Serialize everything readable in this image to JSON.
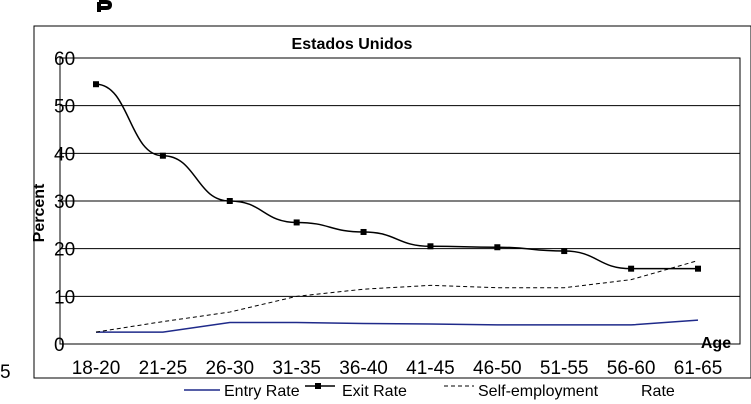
{
  "chart_data": {
    "type": "line",
    "title": "Estados Unidos",
    "xlabel": "Age",
    "ylabel": "Percent",
    "categories": [
      "18-20",
      "21-25",
      "26-30",
      "31-35",
      "36-40",
      "41-45",
      "46-50",
      "51-55",
      "56-60",
      "61-65"
    ],
    "ylim": [
      0,
      60
    ],
    "yticks": [
      "0",
      "10",
      "20",
      "30",
      "40",
      "50",
      "60"
    ],
    "grid": true,
    "legend_position": "bottom",
    "series": [
      {
        "name": "Entry Rate",
        "color": "#1f2a8a",
        "style": "solid",
        "values": [
          2.5,
          2.5,
          4.5,
          4.5,
          4.3,
          4.2,
          4.0,
          4.0,
          4.0,
          5.0
        ]
      },
      {
        "name": "Exit Rate",
        "color": "#000000",
        "style": "solid-marker",
        "values": [
          54.5,
          39.5,
          30.0,
          25.5,
          23.5,
          20.5,
          20.3,
          19.5,
          15.8,
          15.8
        ]
      },
      {
        "name": "Self-employment Rate",
        "color": "#000000",
        "style": "dashed",
        "values": [
          2.5,
          4.7,
          6.7,
          10.0,
          11.5,
          12.3,
          11.8,
          11.8,
          13.5,
          17.5
        ]
      }
    ],
    "legend_labels": [
      "Entry Rate",
      "Exit Rate",
      "Self-employment",
      "Rate"
    ]
  },
  "colors": {
    "grid": "#000000",
    "plot_bg": "#ffffff",
    "frame": "#000000"
  }
}
